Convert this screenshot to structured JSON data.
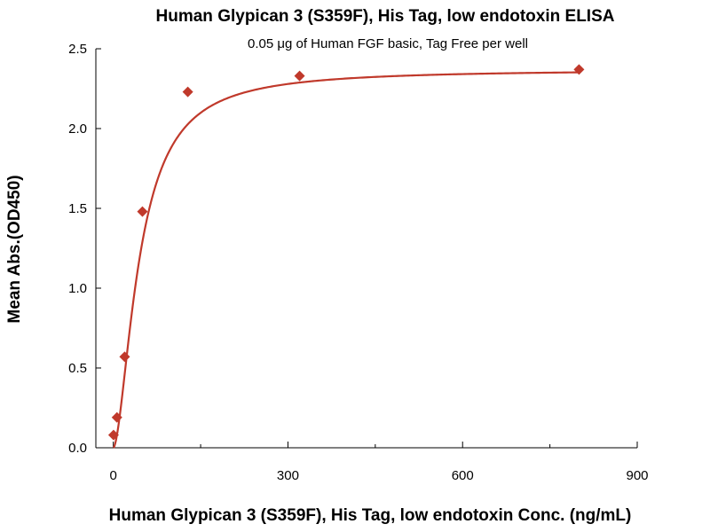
{
  "chart_data": {
    "type": "scatter",
    "title": "Human Glypican 3 (S359F), His Tag, low endotoxin ELISA",
    "subtitle": "0.05 μg of Human FGF basic, Tag Free per well",
    "xlabel": "Human Glypican 3 (S359F), His Tag, low endotoxin Conc. (ng/mL)",
    "ylabel": "Mean Abs.(OD450)",
    "xlim": [
      -30,
      900
    ],
    "ylim": [
      0,
      2.5
    ],
    "x_ticks": [
      0,
      300,
      600,
      900
    ],
    "x_tick_labels": [
      "0",
      "300",
      "600",
      "900"
    ],
    "x_minor_ticks": [
      150,
      450,
      750
    ],
    "y_ticks": [
      0,
      0.5,
      1.0,
      1.5,
      2.0,
      2.5
    ],
    "y_tick_labels": [
      "0.0",
      "0.5",
      "1.0",
      "1.5",
      "2.0",
      "2.5"
    ],
    "grid": false,
    "legend": "none",
    "series": [
      {
        "x": [
          0.39,
          6.25,
          19.5,
          50,
          128,
          320,
          800
        ],
        "y": [
          0.08,
          0.19,
          0.57,
          1.48,
          2.23,
          2.33,
          2.37
        ],
        "marker": "diamond",
        "fit": "four-parameter logistic",
        "color": "#c0392b"
      }
    ]
  }
}
